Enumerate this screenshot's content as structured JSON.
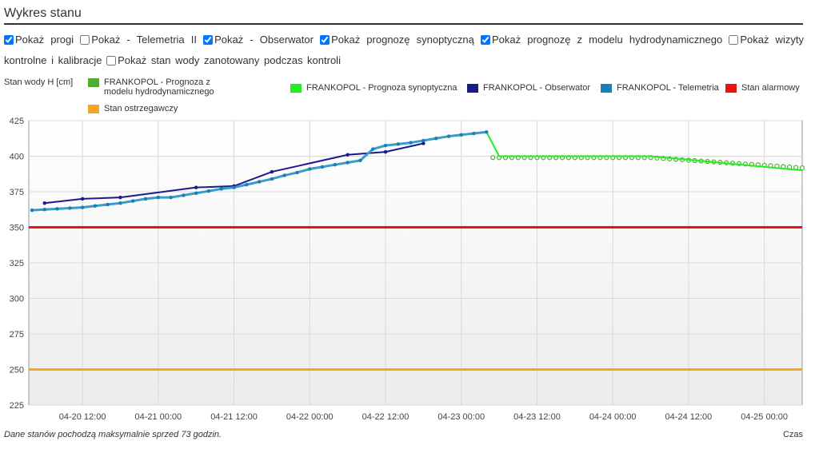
{
  "header": {
    "title": "Wykres stanu"
  },
  "checkboxes": [
    {
      "label": "Pokaż progi",
      "checked": true
    },
    {
      "label": "Pokaż - Telemetria II",
      "checked": false
    },
    {
      "label": "Pokaż - Obserwator",
      "checked": true
    },
    {
      "label": "Pokaż prognozę synoptyczną",
      "checked": true
    },
    {
      "label": "Pokaż prognozę z modelu hydrodynamicznego",
      "checked": true
    },
    {
      "label": "Pokaż wizyty kontrolne i kalibracje",
      "checked": false
    },
    {
      "label": "Pokaż stan wody zanotowany podczas kontroli",
      "checked": false
    }
  ],
  "chart_data": {
    "type": "line",
    "ylabel": "Stan wody H [cm]",
    "xlabel": "Czas",
    "grid": true,
    "ylim": [
      225,
      425
    ],
    "yticks": [
      225,
      250,
      275,
      300,
      325,
      350,
      375,
      400,
      425
    ],
    "xlim": [
      "04-20 03:30",
      "04-25 06:00"
    ],
    "xticks": [
      "04-20 12:00",
      "04-21 00:00",
      "04-21 12:00",
      "04-22 00:00",
      "04-22 12:00",
      "04-23 00:00",
      "04-23 12:00",
      "04-24 00:00",
      "04-24 12:00",
      "04-25 00:00"
    ],
    "series": [
      {
        "name": "FRANKOPOL - Prognoza z modelu hydrodynamicznego",
        "color": "#4caf32",
        "mode": "markers",
        "x": [
          "04-23 05:00",
          "04-23 06:00",
          "04-23 07:00",
          "04-23 08:00",
          "04-23 09:00",
          "04-23 10:00",
          "04-23 11:00",
          "04-23 12:00",
          "04-23 13:00",
          "04-23 14:00",
          "04-23 15:00",
          "04-23 16:00",
          "04-23 17:00",
          "04-23 18:00",
          "04-23 19:00",
          "04-23 20:00",
          "04-23 21:00",
          "04-23 22:00",
          "04-23 23:00",
          "04-24 00:00",
          "04-24 01:00",
          "04-24 02:00",
          "04-24 03:00",
          "04-24 04:00",
          "04-24 05:00",
          "04-24 06:00",
          "04-24 07:00",
          "04-24 08:00",
          "04-24 09:00",
          "04-24 10:00",
          "04-24 11:00",
          "04-24 12:00",
          "04-24 13:00",
          "04-24 14:00",
          "04-24 15:00",
          "04-24 16:00",
          "04-24 17:00",
          "04-24 18:00",
          "04-24 19:00",
          "04-24 20:00",
          "04-24 21:00",
          "04-24 22:00",
          "04-24 23:00",
          "04-25 00:00",
          "04-25 01:00",
          "04-25 02:00",
          "04-25 03:00",
          "04-25 04:00",
          "04-25 05:00",
          "04-25 06:00"
        ],
        "values": [
          399,
          399,
          399,
          399,
          399,
          399,
          399,
          399,
          399,
          399,
          399,
          399,
          399,
          399,
          399,
          399,
          399,
          399,
          399,
          399,
          399,
          399,
          399,
          399,
          399,
          399,
          398.7,
          398.4,
          398.1,
          397.8,
          397.5,
          397.2,
          396.9,
          396.6,
          396.3,
          396,
          395.7,
          395.4,
          395.1,
          394.8,
          394.5,
          394.2,
          393.9,
          393.6,
          393.3,
          393,
          392.7,
          392.4,
          392.1,
          391.8
        ]
      },
      {
        "name": "FRANKOPOL - Prognoza synoptyczna",
        "color": "#22ee22",
        "mode": "line",
        "x": [
          "04-23 04:00",
          "04-23 06:00",
          "04-24 06:00",
          "04-25 06:00"
        ],
        "values": [
          417,
          400,
          400,
          390
        ]
      },
      {
        "name": "FRANKOPOL - Obserwator",
        "color": "#1a1a8c",
        "mode": "line+markers",
        "x": [
          "04-20 06:00",
          "04-20 12:00",
          "04-20 18:00",
          "04-21 06:00",
          "04-21 12:00",
          "04-21 18:00",
          "04-22 06:00",
          "04-22 12:00",
          "04-22 18:00"
        ],
        "values": [
          367,
          370,
          371,
          378,
          379,
          389,
          401,
          403,
          409
        ]
      },
      {
        "name": "FRANKOPOL - Telemetria",
        "color": "#1a7fb5",
        "mode": "line+markers",
        "x": [
          "04-20 04:00",
          "04-20 06:00",
          "04-20 08:00",
          "04-20 10:00",
          "04-20 12:00",
          "04-20 14:00",
          "04-20 16:00",
          "04-20 18:00",
          "04-20 20:00",
          "04-20 22:00",
          "04-21 00:00",
          "04-21 02:00",
          "04-21 04:00",
          "04-21 06:00",
          "04-21 08:00",
          "04-21 10:00",
          "04-21 12:00",
          "04-21 14:00",
          "04-21 16:00",
          "04-21 18:00",
          "04-21 20:00",
          "04-21 22:00",
          "04-22 00:00",
          "04-22 02:00",
          "04-22 04:00",
          "04-22 06:00",
          "04-22 08:00",
          "04-22 10:00",
          "04-22 12:00",
          "04-22 14:00",
          "04-22 16:00",
          "04-22 18:00",
          "04-22 20:00",
          "04-22 22:00",
          "04-23 00:00",
          "04-23 02:00",
          "04-23 04:00"
        ],
        "values": [
          362,
          362.5,
          363,
          363.5,
          364,
          365,
          366,
          367,
          368.5,
          370,
          371,
          371,
          372.5,
          374,
          375.5,
          377,
          378,
          380,
          382,
          384,
          386.5,
          388.5,
          391,
          392.5,
          394,
          395.5,
          397,
          405,
          407.5,
          408.5,
          409.5,
          411,
          412.5,
          414,
          415,
          416,
          417
        ]
      },
      {
        "name": "Stan alarmowy",
        "color": "#ee1111",
        "mode": "level",
        "level": 350
      },
      {
        "name": "Stan ostrzegawczy",
        "color": "#f5a623",
        "mode": "level",
        "level": 250
      }
    ]
  },
  "footnote": "Dane stanów pochodzą maksymalnie sprzed 73 godzin."
}
